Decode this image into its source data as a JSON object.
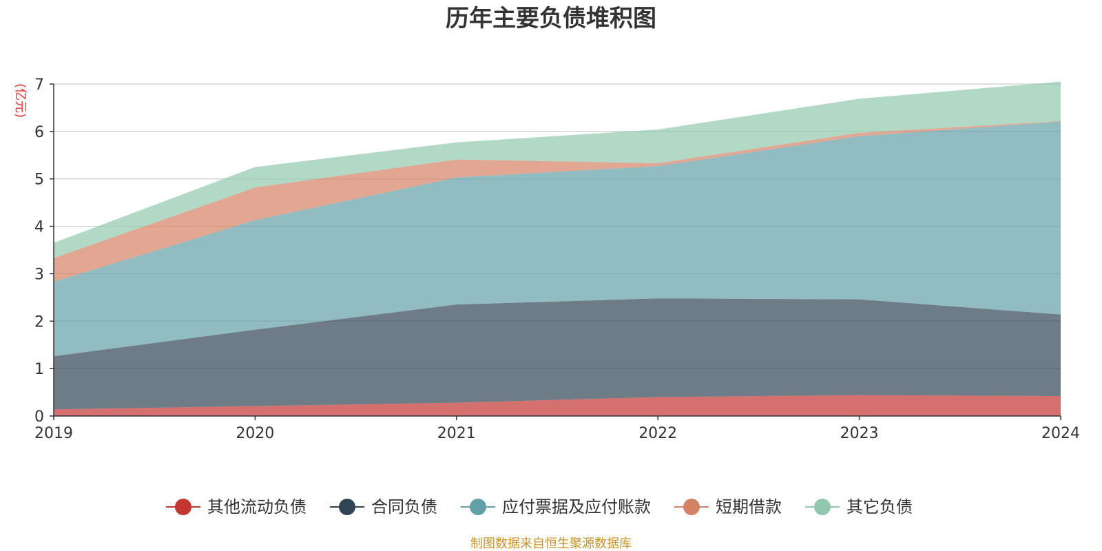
{
  "chart_data": {
    "type": "area",
    "title": "历年主要负债堆积图",
    "ylabel": "(亿元)",
    "xlabel": "",
    "x": [
      "2019",
      "2020",
      "2021",
      "2022",
      "2023",
      "2024"
    ],
    "ylim": [
      0,
      7
    ],
    "yticks": [
      0,
      1,
      2,
      3,
      4,
      5,
      6,
      7
    ],
    "stacked": true,
    "grid": true,
    "legend_position": "bottom",
    "series": [
      {
        "name": "其他流动负债",
        "color": "#c23531",
        "values": [
          0.14,
          0.21,
          0.28,
          0.4,
          0.44,
          0.42
        ]
      },
      {
        "name": "合同负债",
        "color": "#2f4554",
        "values": [
          1.12,
          1.61,
          2.07,
          2.08,
          2.02,
          1.72
        ]
      },
      {
        "name": "应付票据及应付账款",
        "color": "#61a0a8",
        "values": [
          1.57,
          2.31,
          2.68,
          2.79,
          3.44,
          4.07
        ]
      },
      {
        "name": "短期借款",
        "color": "#d48265",
        "values": [
          0.5,
          0.69,
          0.38,
          0.06,
          0.07,
          0.01
        ]
      },
      {
        "name": "其它负债",
        "color": "#91c7ae",
        "values": [
          0.32,
          0.43,
          0.36,
          0.71,
          0.72,
          0.83
        ]
      }
    ]
  },
  "footer": {
    "source": "制图数据来自恒生聚源数据库"
  }
}
